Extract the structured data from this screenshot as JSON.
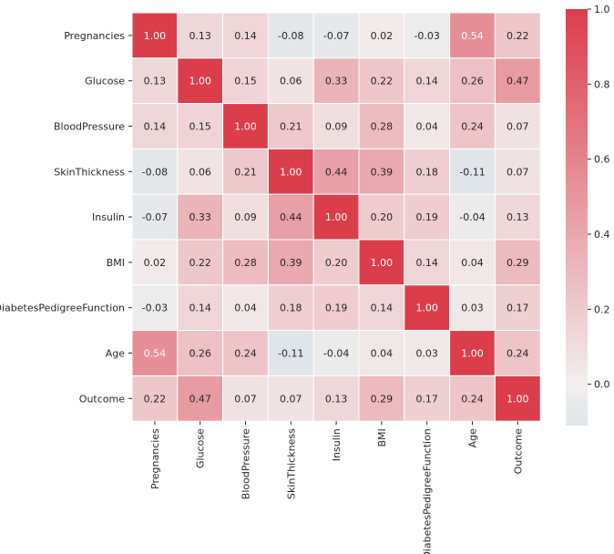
{
  "chart_data": {
    "type": "heatmap",
    "title": "",
    "xlabel": "",
    "ylabel": "",
    "labels": [
      "Pregnancies",
      "Glucose",
      "BloodPressure",
      "SkinThickness",
      "Insulin",
      "BMI",
      "DiabetesPedigreeFunction",
      "Age",
      "Outcome"
    ],
    "values": [
      [
        1.0,
        0.13,
        0.14,
        -0.08,
        -0.07,
        0.02,
        -0.03,
        0.54,
        0.22
      ],
      [
        0.13,
        1.0,
        0.15,
        0.06,
        0.33,
        0.22,
        0.14,
        0.26,
        0.47
      ],
      [
        0.14,
        0.15,
        1.0,
        0.21,
        0.09,
        0.28,
        0.04,
        0.24,
        0.07
      ],
      [
        -0.08,
        0.06,
        0.21,
        1.0,
        0.44,
        0.39,
        0.18,
        -0.11,
        0.07
      ],
      [
        -0.07,
        0.33,
        0.09,
        0.44,
        1.0,
        0.2,
        0.19,
        -0.04,
        0.13
      ],
      [
        0.02,
        0.22,
        0.28,
        0.39,
        0.2,
        1.0,
        0.14,
        0.04,
        0.29
      ],
      [
        -0.03,
        0.14,
        0.04,
        0.18,
        0.19,
        0.14,
        1.0,
        0.03,
        0.17
      ],
      [
        0.54,
        0.26,
        0.24,
        -0.11,
        -0.04,
        0.04,
        0.03,
        1.0,
        0.24
      ],
      [
        0.22,
        0.47,
        0.07,
        0.07,
        0.13,
        0.29,
        0.17,
        0.24,
        1.0
      ]
    ],
    "value_format": "2 decimals",
    "colorbar": {
      "min": -0.11,
      "max": 1.0,
      "ticks": [
        "0.0",
        "0.2",
        "0.4",
        "0.6",
        "0.8",
        "1.0"
      ],
      "tick_values": [
        0.0,
        0.2,
        0.4,
        0.6,
        0.8,
        1.0
      ]
    },
    "colors": {
      "negative": "#dfe5e9",
      "neutral": "#f2eeee",
      "positive": "#dc3d4b",
      "grid_line": "#ffffff",
      "text_dark": "#262626",
      "text_light": "#ffffff"
    },
    "legend": "right colorbar",
    "grid": false
  }
}
